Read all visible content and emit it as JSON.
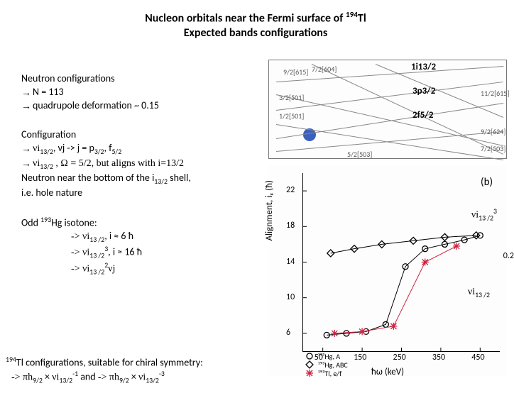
{
  "title": {
    "line1_pre": "Nucleon orbitals near the Fermi surface of ",
    "mass": "194",
    "element": "Tl",
    "line2": "Expected bands configurations"
  },
  "neutron_conf": {
    "heading": "Neutron configurations",
    "lines": [
      "N = 113",
      "quadrupole deformation ~ 0.15"
    ]
  },
  "configuration": {
    "heading": "Configuration",
    "line1_a": "νi",
    "line1_a_sub": "13/2",
    "line1_b": ",   νj -> j = p",
    "line1_b_sub": "3/2",
    "line1_c": ", f",
    "line1_c_sub": "5/2",
    "line2_a": "νi",
    "line2_a_sub": "13/2",
    "line2_b": " ,  Ω = 5/2, but aligns with i=13/2",
    "line3_a": "Neutron near the bottom of the i",
    "line3_sub": "13/2",
    "line3_b": " shell,",
    "line4": "i.e. hole nature"
  },
  "odd_hg": {
    "heading_a": "Odd ",
    "heading_mass": "193",
    "heading_b": "Hg isotone:",
    "row1_a": "-> νi",
    "row1_sub": "13 /2",
    "row1_b": ", i ≈ 6 ħ",
    "row2_a": "-> νi",
    "row2_sub": "13 /2",
    "row2_sup": "3",
    "row2_b": ", i ≈ 16 ħ",
    "row3_a": "-> νi",
    "row3_sub": "13 /2",
    "row3_sup": "2",
    "row3_b": "νj"
  },
  "tl_conf": {
    "line1_mass": "194",
    "line1_txt": "Tl configurations, suitable for chiral symmetry:",
    "line2_a": "-> πh",
    "h_sub": "9/2",
    "times": " × ",
    "nu_i": "νi",
    "i_sub": "13/2",
    "exp1": "-1",
    "and": "   and    ",
    "exp2": "-3"
  },
  "annotations": {
    "i13_cubed_a": "νi",
    "i13_cubed_sub": "13 /2",
    "i13_cubed_sup": "3",
    "i13_a": "νi",
    "i13_sub": "13 /2"
  },
  "alignment_chart": {
    "type": "scatter-line",
    "xlabel": "ħω (keV)",
    "ylabel": "Alignment, iₓ (ħ)",
    "panel_label": "(b)",
    "side_label": "0.2",
    "xlim": [
      0,
      500
    ],
    "ylim": [
      4,
      24
    ],
    "xticks": [
      50,
      150,
      250,
      350,
      450
    ],
    "yticks": [
      6,
      10,
      14,
      18,
      22
    ],
    "axis_color": "#000000",
    "tick_fontsize": 12,
    "label_fontsize": 13,
    "background_color": "#fdfdfd",
    "series": [
      {
        "name": "193Hg_A",
        "marker": "circle",
        "color": "#000000",
        "legend": "¹⁹³Hg, A",
        "points": [
          [
            60,
            5.8
          ],
          [
            110,
            6.0
          ],
          [
            160,
            6.2
          ],
          [
            210,
            7.0
          ],
          [
            260,
            13.5
          ],
          [
            310,
            15.5
          ],
          [
            360,
            16.0
          ],
          [
            410,
            16.5
          ],
          [
            450,
            17.0
          ]
        ]
      },
      {
        "name": "193Hg_ABC",
        "marker": "diamond",
        "color": "#000000",
        "legend": "¹⁹³Hg, ABC",
        "points": [
          [
            70,
            15.0
          ],
          [
            130,
            15.5
          ],
          [
            200,
            16.0
          ],
          [
            280,
            16.4
          ],
          [
            360,
            16.8
          ],
          [
            440,
            17.0
          ]
        ]
      },
      {
        "name": "193Tl_ef",
        "marker": "asterisk",
        "color": "#d02040",
        "legend": "¹⁹³Tl, e/f",
        "points": [
          [
            80,
            6.0
          ],
          [
            150,
            6.2
          ],
          [
            230,
            6.8
          ],
          [
            310,
            14.0
          ],
          [
            390,
            15.8
          ]
        ]
      }
    ],
    "legend_pos": "outside-bottom-left"
  },
  "nilsson_chart": {
    "type": "nilsson-partial",
    "background_color": "#fdfdfd",
    "border_color": "#777777",
    "orbital_labels_left": [
      "1i13/2",
      "3p3/2",
      "2f5/2"
    ],
    "orbital_labels_small": [
      "9/2[615]",
      "7/2[604]",
      "3/2[501]",
      "1/2[501]",
      "5/2[503]",
      "7/2[503]",
      "11/2[615]",
      "9/2[624]"
    ],
    "line_color": "#888888",
    "label_fontsize": 10,
    "blue_dot_color": "#3a5fbf"
  }
}
